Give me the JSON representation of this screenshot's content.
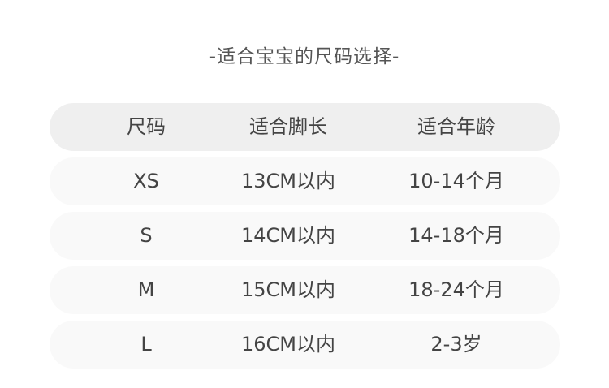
{
  "title": "-适合宝宝的尺码选择-",
  "headers": [
    "尺码",
    "适合脚长",
    "适合年龄"
  ],
  "rows": [
    [
      "XS",
      "13CM以内",
      "10-14个月"
    ],
    [
      "S",
      "14CM以内",
      "14-18个月"
    ],
    [
      "M",
      "15CM以内",
      "18-24个月"
    ],
    [
      "L",
      "16CM以内",
      "2-3岁"
    ]
  ]
}
